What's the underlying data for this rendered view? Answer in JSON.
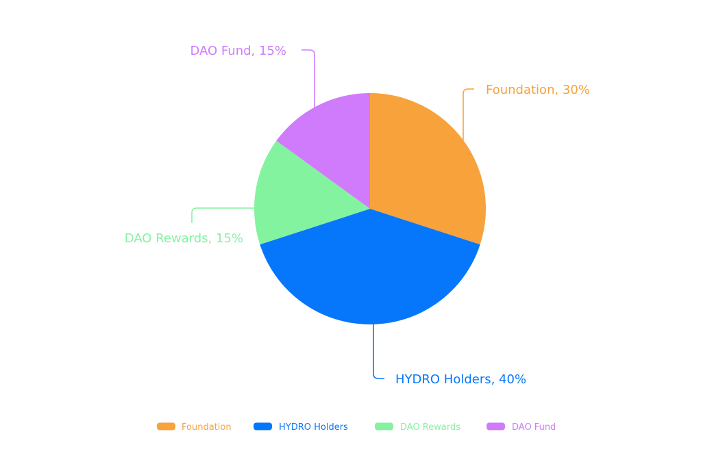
{
  "chart_data": {
    "type": "pie",
    "categories": [
      "Foundation",
      "HYDRO Holders",
      "DAO Rewards",
      "DAO Fund"
    ],
    "values": [
      30,
      40,
      15,
      15
    ],
    "unit": "%",
    "colors": [
      "#F7A23B",
      "#0677FB",
      "#84F3A0",
      "#CF7BFB"
    ],
    "slice_labels": [
      "Foundation, 30%",
      "HYDRO Holders, 40%",
      "DAO Rewards, 15%",
      "DAO Fund, 15%"
    ],
    "legend": {
      "position": "bottom",
      "entries": [
        "Foundation",
        "HYDRO Holders",
        "DAO Rewards",
        "DAO Fund"
      ]
    }
  }
}
